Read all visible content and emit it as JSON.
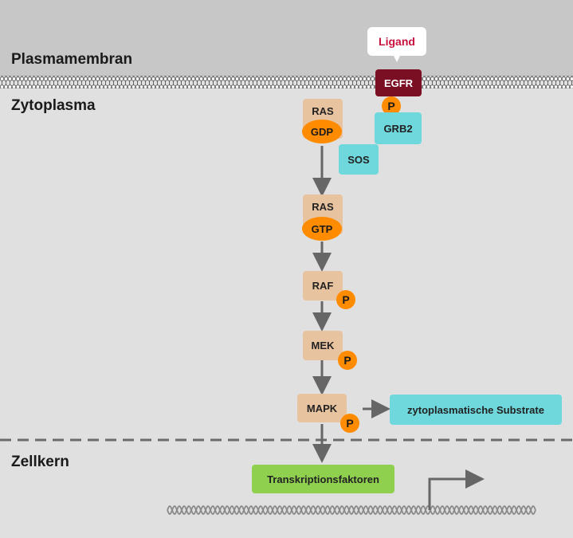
{
  "regions": {
    "membrane": "Plasmamembran",
    "cytoplasm": "Zytoplasma",
    "nucleus": "Zellkern"
  },
  "ligand": "Ligand",
  "receptor": "EGFR",
  "adaptors": {
    "grb2": "GRB2",
    "sos": "SOS"
  },
  "phospho": "P",
  "cascade": {
    "ras_gdp": {
      "name": "RAS",
      "bound": "GDP"
    },
    "ras_gtp": {
      "name": "RAS",
      "bound": "GTP"
    },
    "raf": "RAF",
    "mek": "MEK",
    "mapk": "MAPK"
  },
  "substrates": "zytoplasmatische Substrate",
  "transcription_factors": "Transkriptionsfaktoren",
  "colors": {
    "membrane_band": "#c7c7c7",
    "cytoplasm": "#e0e0e0",
    "receptor": "#7a0f24",
    "ligand_text": "#c8103e",
    "kinase": "#e8c3a0",
    "adaptor": "#6ed8dc",
    "phosphate": "#ff8c00",
    "transcription": "#8fd14f",
    "arrow": "#666666"
  }
}
